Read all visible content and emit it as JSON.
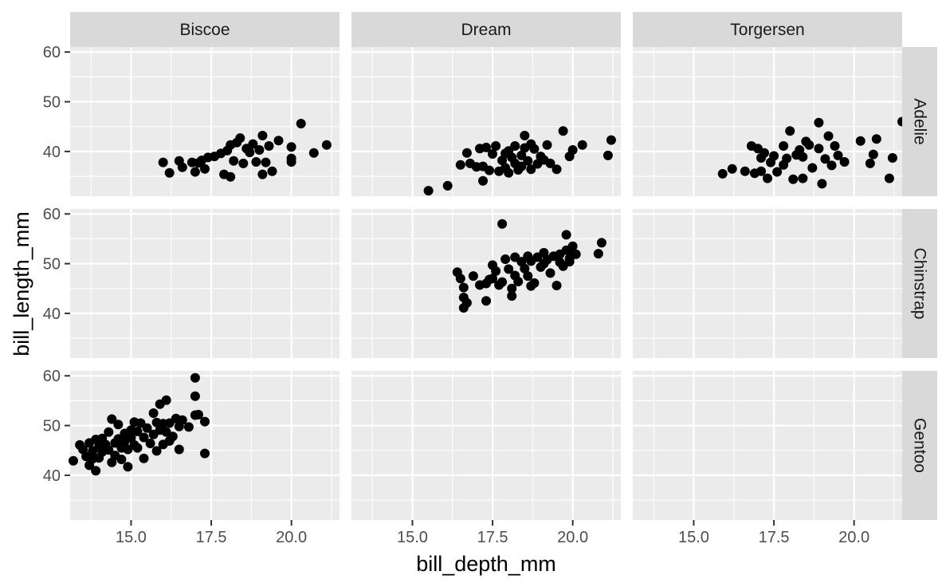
{
  "chart_data": {
    "type": "scatter",
    "title": "",
    "xlabel": "bill_depth_mm",
    "ylabel": "bill_length_mm",
    "xlim": [
      13.1,
      21.5
    ],
    "ylim": [
      31,
      61
    ],
    "x_ticks": [
      15.0,
      17.5,
      20.0
    ],
    "x_tick_labels": [
      "15.0",
      "17.5",
      "20.0"
    ],
    "y_ticks": [
      40,
      50,
      60
    ],
    "y_tick_labels": [
      "40",
      "50",
      "60"
    ],
    "grid": true,
    "legend": "none",
    "facet_cols": [
      "Biscoe",
      "Dream",
      "Torgersen"
    ],
    "facet_rows": [
      "Adelie",
      "Chinstrap",
      "Gentoo"
    ],
    "panels": [
      {
        "col": "Biscoe",
        "row": "Adelie",
        "points": [
          [
            16.0,
            37.8
          ],
          [
            16.2,
            35.7
          ],
          [
            16.5,
            38.1
          ],
          [
            16.6,
            36.8
          ],
          [
            16.9,
            37.8
          ],
          [
            17.0,
            35.9
          ],
          [
            17.1,
            37.7
          ],
          [
            17.2,
            38.2
          ],
          [
            17.3,
            36.5
          ],
          [
            17.4,
            38.8
          ],
          [
            17.6,
            39.0
          ],
          [
            17.8,
            39.6
          ],
          [
            17.9,
            35.4
          ],
          [
            18.0,
            40.2
          ],
          [
            18.1,
            41.3
          ],
          [
            18.1,
            34.9
          ],
          [
            18.2,
            38.1
          ],
          [
            18.3,
            41.8
          ],
          [
            18.4,
            42.7
          ],
          [
            18.5,
            37.6
          ],
          [
            18.6,
            40.6
          ],
          [
            18.7,
            39.8
          ],
          [
            18.8,
            41.5
          ],
          [
            18.9,
            37.9
          ],
          [
            19.0,
            40.3
          ],
          [
            19.1,
            35.4
          ],
          [
            19.1,
            43.2
          ],
          [
            19.2,
            37.8
          ],
          [
            19.3,
            41.1
          ],
          [
            19.4,
            36.0
          ],
          [
            19.6,
            42.2
          ],
          [
            20.0,
            40.9
          ],
          [
            20.0,
            38.6
          ],
          [
            20.0,
            37.9
          ],
          [
            20.3,
            45.6
          ],
          [
            20.7,
            39.7
          ],
          [
            21.1,
            41.3
          ]
        ]
      },
      {
        "col": "Dream",
        "row": "Adelie",
        "points": [
          [
            15.5,
            32.1
          ],
          [
            16.1,
            33.1
          ],
          [
            16.5,
            37.3
          ],
          [
            16.7,
            39.7
          ],
          [
            16.8,
            37.6
          ],
          [
            17.0,
            36.9
          ],
          [
            17.1,
            40.6
          ],
          [
            17.2,
            37.0
          ],
          [
            17.2,
            34.1
          ],
          [
            17.3,
            40.8
          ],
          [
            17.4,
            36.2
          ],
          [
            17.5,
            39.5
          ],
          [
            17.6,
            41.1
          ],
          [
            17.7,
            36.0
          ],
          [
            17.8,
            38.2
          ],
          [
            17.9,
            39.6
          ],
          [
            17.9,
            36.7
          ],
          [
            18.0,
            40.1
          ],
          [
            18.0,
            35.7
          ],
          [
            18.1,
            38.8
          ],
          [
            18.2,
            41.1
          ],
          [
            18.2,
            37.6
          ],
          [
            18.3,
            36.3
          ],
          [
            18.4,
            39.2
          ],
          [
            18.4,
            37.0
          ],
          [
            18.5,
            40.7
          ],
          [
            18.5,
            43.2
          ],
          [
            18.6,
            38.1
          ],
          [
            18.7,
            41.5
          ],
          [
            18.7,
            36.4
          ],
          [
            18.8,
            40.5
          ],
          [
            18.9,
            37.5
          ],
          [
            19.0,
            39.0
          ],
          [
            19.1,
            38.3
          ],
          [
            19.2,
            41.3
          ],
          [
            19.3,
            37.6
          ],
          [
            19.5,
            36.4
          ],
          [
            19.7,
            44.1
          ],
          [
            19.9,
            39.0
          ],
          [
            20.0,
            40.3
          ],
          [
            20.3,
            41.3
          ],
          [
            21.1,
            39.2
          ],
          [
            21.2,
            42.3
          ]
        ]
      },
      {
        "col": "Torgersen",
        "row": "Adelie",
        "points": [
          [
            15.9,
            35.5
          ],
          [
            16.2,
            36.5
          ],
          [
            16.6,
            36.0
          ],
          [
            16.8,
            41.1
          ],
          [
            16.9,
            35.6
          ],
          [
            17.0,
            40.6
          ],
          [
            17.1,
            38.7
          ],
          [
            17.1,
            36.0
          ],
          [
            17.2,
            39.7
          ],
          [
            17.3,
            34.6
          ],
          [
            17.4,
            37.8
          ],
          [
            17.5,
            39.1
          ],
          [
            17.6,
            35.9
          ],
          [
            17.8,
            41.1
          ],
          [
            17.8,
            37.3
          ],
          [
            17.9,
            38.6
          ],
          [
            18.0,
            44.1
          ],
          [
            18.1,
            34.4
          ],
          [
            18.2,
            39.3
          ],
          [
            18.3,
            40.3
          ],
          [
            18.4,
            34.6
          ],
          [
            18.4,
            38.9
          ],
          [
            18.5,
            42.0
          ],
          [
            18.6,
            41.3
          ],
          [
            18.7,
            36.7
          ],
          [
            18.9,
            45.8
          ],
          [
            18.9,
            40.6
          ],
          [
            19.0,
            33.5
          ],
          [
            19.1,
            38.5
          ],
          [
            19.2,
            43.1
          ],
          [
            19.3,
            37.2
          ],
          [
            19.4,
            41.1
          ],
          [
            19.5,
            39.2
          ],
          [
            19.7,
            37.9
          ],
          [
            20.2,
            42.1
          ],
          [
            20.5,
            37.6
          ],
          [
            20.6,
            39.4
          ],
          [
            20.7,
            42.5
          ],
          [
            21.1,
            34.6
          ],
          [
            21.2,
            38.7
          ],
          [
            21.5,
            46.0
          ]
        ]
      },
      {
        "col": "Dream",
        "row": "Chinstrap",
        "points": [
          [
            16.4,
            48.3
          ],
          [
            16.5,
            47.0
          ],
          [
            16.6,
            45.2
          ],
          [
            16.6,
            43.2
          ],
          [
            16.6,
            41.1
          ],
          [
            16.7,
            42.1
          ],
          [
            16.9,
            47.5
          ],
          [
            17.1,
            45.7
          ],
          [
            17.3,
            46.0
          ],
          [
            17.3,
            42.5
          ],
          [
            17.4,
            46.8
          ],
          [
            17.5,
            49.7
          ],
          [
            17.5,
            47.0
          ],
          [
            17.6,
            48.5
          ],
          [
            17.7,
            45.7
          ],
          [
            17.8,
            58.0
          ],
          [
            17.8,
            46.3
          ],
          [
            17.9,
            50.9
          ],
          [
            18.0,
            48.9
          ],
          [
            18.1,
            45.0
          ],
          [
            18.1,
            43.5
          ],
          [
            18.2,
            51.3
          ],
          [
            18.2,
            47.6
          ],
          [
            18.3,
            46.4
          ],
          [
            18.4,
            50.4
          ],
          [
            18.5,
            49.0
          ],
          [
            18.6,
            51.5
          ],
          [
            18.6,
            47.5
          ],
          [
            18.7,
            50.5
          ],
          [
            18.7,
            45.5
          ],
          [
            18.8,
            46.1
          ],
          [
            18.9,
            51.3
          ],
          [
            19.0,
            49.3
          ],
          [
            19.1,
            52.2
          ],
          [
            19.1,
            50.0
          ],
          [
            19.2,
            50.8
          ],
          [
            19.3,
            48.1
          ],
          [
            19.4,
            51.5
          ],
          [
            19.5,
            45.6
          ],
          [
            19.6,
            50.3
          ],
          [
            19.6,
            51.9
          ],
          [
            19.7,
            49.5
          ],
          [
            19.8,
            55.8
          ],
          [
            19.8,
            52.7
          ],
          [
            19.9,
            51.0
          ],
          [
            19.9,
            50.4
          ],
          [
            20.0,
            52.0
          ],
          [
            20.0,
            53.5
          ],
          [
            20.1,
            51.9
          ],
          [
            20.8,
            52.0
          ],
          [
            20.9,
            54.2
          ]
        ]
      },
      {
        "col": "Biscoe",
        "row": "Gentoo",
        "points": [
          [
            13.2,
            42.9
          ],
          [
            13.4,
            46.1
          ],
          [
            13.5,
            45.2
          ],
          [
            13.6,
            43.8
          ],
          [
            13.7,
            46.5
          ],
          [
            13.7,
            42.0
          ],
          [
            13.8,
            44.9
          ],
          [
            13.8,
            43.3
          ],
          [
            13.9,
            47.2
          ],
          [
            13.9,
            40.9
          ],
          [
            14.0,
            45.8
          ],
          [
            14.0,
            43.5
          ],
          [
            14.1,
            47.4
          ],
          [
            14.1,
            44.7
          ],
          [
            14.2,
            46.2
          ],
          [
            14.3,
            48.7
          ],
          [
            14.3,
            45.1
          ],
          [
            14.4,
            42.6
          ],
          [
            14.4,
            51.3
          ],
          [
            14.5,
            46.5
          ],
          [
            14.5,
            44.0
          ],
          [
            14.6,
            50.2
          ],
          [
            14.6,
            47.3
          ],
          [
            14.7,
            45.5
          ],
          [
            14.7,
            43.2
          ],
          [
            14.8,
            48.4
          ],
          [
            14.8,
            46.8
          ],
          [
            14.9,
            41.7
          ],
          [
            14.9,
            45.2
          ],
          [
            15.0,
            49.1
          ],
          [
            15.0,
            47.5
          ],
          [
            15.1,
            50.7
          ],
          [
            15.1,
            46.1
          ],
          [
            15.2,
            48.8
          ],
          [
            15.2,
            45.5
          ],
          [
            15.3,
            50.5
          ],
          [
            15.4,
            47.6
          ],
          [
            15.4,
            43.4
          ],
          [
            15.5,
            49.5
          ],
          [
            15.6,
            46.4
          ],
          [
            15.7,
            52.5
          ],
          [
            15.7,
            48.2
          ],
          [
            15.8,
            50.6
          ],
          [
            15.8,
            44.9
          ],
          [
            15.9,
            54.3
          ],
          [
            15.9,
            49.1
          ],
          [
            16.0,
            46.2
          ],
          [
            16.0,
            50.4
          ],
          [
            16.1,
            55.1
          ],
          [
            16.1,
            48.7
          ],
          [
            16.2,
            50.5
          ],
          [
            16.2,
            46.9
          ],
          [
            16.3,
            47.8
          ],
          [
            16.4,
            51.4
          ],
          [
            16.5,
            49.8
          ],
          [
            16.5,
            45.2
          ],
          [
            16.6,
            51.1
          ],
          [
            16.8,
            49.7
          ],
          [
            17.0,
            59.6
          ],
          [
            17.0,
            55.9
          ],
          [
            17.0,
            52.1
          ],
          [
            17.1,
            52.2
          ],
          [
            17.3,
            50.8
          ],
          [
            17.3,
            44.4
          ]
        ]
      }
    ]
  }
}
